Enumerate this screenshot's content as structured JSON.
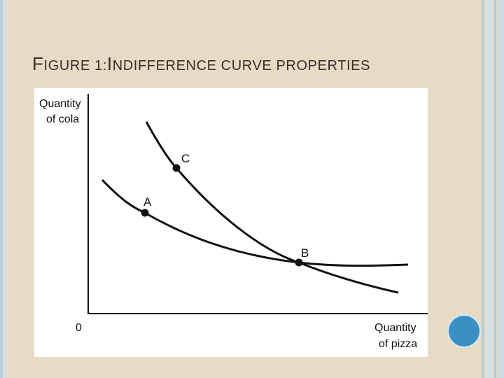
{
  "slide": {
    "title_first_letter_1": "F",
    "title_rest_1": "IGURE 1:",
    "title_first_letter_2": "I",
    "title_rest_2": "NDIFFERENCE CURVE PROPERTIES"
  },
  "figure": {
    "y_axis_label_line1": "Quantity",
    "y_axis_label_line2": "of cola",
    "x_axis_label_line1": "Quantity",
    "x_axis_label_line2": "of pizza",
    "origin_label": "0",
    "points": [
      {
        "label": "A"
      },
      {
        "label": "B"
      },
      {
        "label": "C"
      }
    ]
  },
  "colors": {
    "background": "#e6dcc6",
    "accent_circle": "#3a8fc4",
    "ink": "#111111"
  }
}
